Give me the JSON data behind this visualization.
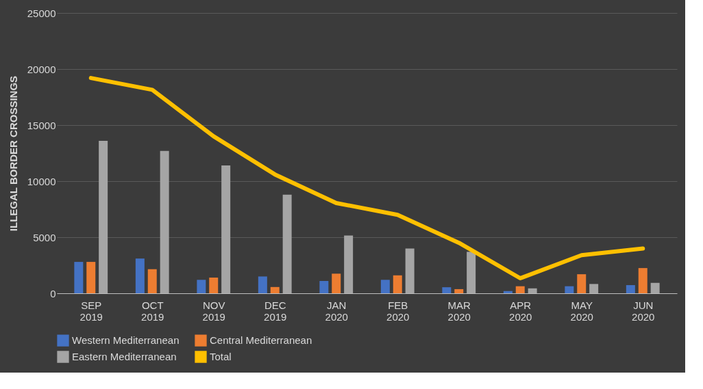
{
  "chart_data": {
    "type": "bar",
    "ylabel": "ILLEGAL  BORDER CROSSINGS",
    "categories": [
      "SEP 2019",
      "OCT 2019",
      "NOV 2019",
      "DEC 2019",
      "JAN 2020",
      "FEB 2020",
      "MAR 2020",
      "APR 2020",
      "MAY 2020",
      "JUN 2020"
    ],
    "series": [
      {
        "name": "Western Mediterranean",
        "color": "#4472c4",
        "values": [
          2800,
          3100,
          1200,
          1500,
          1100,
          1200,
          540,
          200,
          630,
          730
        ]
      },
      {
        "name": "Central Mediterranean",
        "color": "#ed7d31",
        "values": [
          2800,
          2150,
          1400,
          560,
          1750,
          1600,
          370,
          630,
          1700,
          2250
        ]
      },
      {
        "name": "Eastern Mediterranean",
        "color": "#a5a5a5",
        "values": [
          13600,
          12700,
          11400,
          8800,
          5150,
          4000,
          3700,
          440,
          830,
          930
        ]
      },
      {
        "name": "Total",
        "type": "line",
        "color": "#ffc000",
        "values": [
          19200,
          18150,
          14000,
          10600,
          8050,
          7000,
          4500,
          1340,
          3400,
          4000
        ]
      }
    ],
    "ylim": [
      0,
      25000
    ],
    "yticks": [
      0,
      5000,
      10000,
      15000,
      20000,
      25000
    ],
    "grid": "y",
    "legend": "bottom"
  }
}
